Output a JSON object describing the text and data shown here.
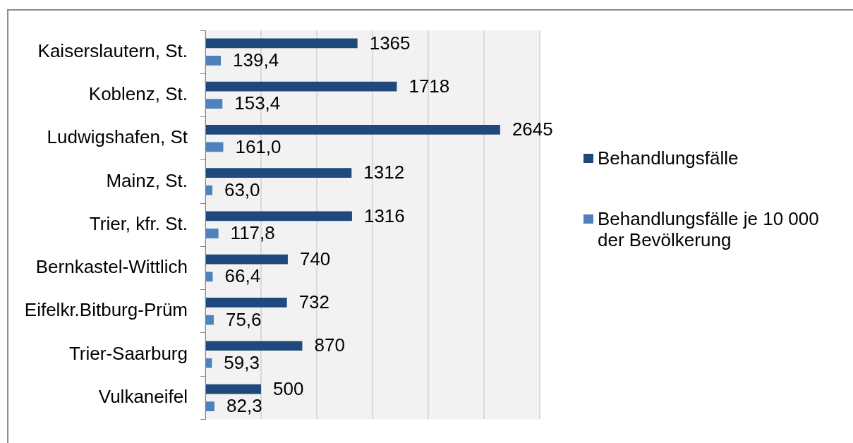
{
  "chart_data": {
    "type": "bar",
    "orientation": "horizontal",
    "categories": [
      "Kaiserslautern, St.",
      "Koblenz, St.",
      "Ludwigshafen, St",
      "Mainz, St.",
      "Trier, kfr. St.",
      "Bernkastel-Wittlich",
      "Eifelkr.Bitburg-Prüm",
      "Trier-Saarburg",
      "Vulkaneifel"
    ],
    "series": [
      {
        "name": "Behandlungsfälle",
        "color": "#1f497d",
        "values": [
          1365,
          1718,
          2645,
          1312,
          1316,
          740,
          732,
          870,
          500
        ],
        "value_labels": [
          "1365",
          "1718",
          "2645",
          "1312",
          "1316",
          "740",
          "732",
          "870",
          "500"
        ]
      },
      {
        "name": "Behandlungsfälle je 10 000 der Bevölkerung",
        "color": "#4f81bd",
        "values": [
          139.4,
          153.4,
          161.0,
          63.0,
          117.8,
          66.4,
          75.6,
          59.3,
          82.3
        ],
        "value_labels": [
          "139,4",
          "153,4",
          "161,0",
          "63,0",
          "117,8",
          "66,4",
          "75,6",
          "59,3",
          "82,3"
        ]
      }
    ],
    "xlim": [
      0,
      3000
    ],
    "xticks": [
      {
        "value": 0,
        "label": null
      },
      {
        "value": 500,
        "label": null
      },
      {
        "value": 1000,
        "label": null
      },
      {
        "value": 1500,
        "label": null
      },
      {
        "value": 2000,
        "label": null
      },
      {
        "value": 2500,
        "label": null
      },
      {
        "value": 3000,
        "label": null
      }
    ],
    "grid": "x",
    "legend": "right",
    "tick_labels": "y"
  }
}
